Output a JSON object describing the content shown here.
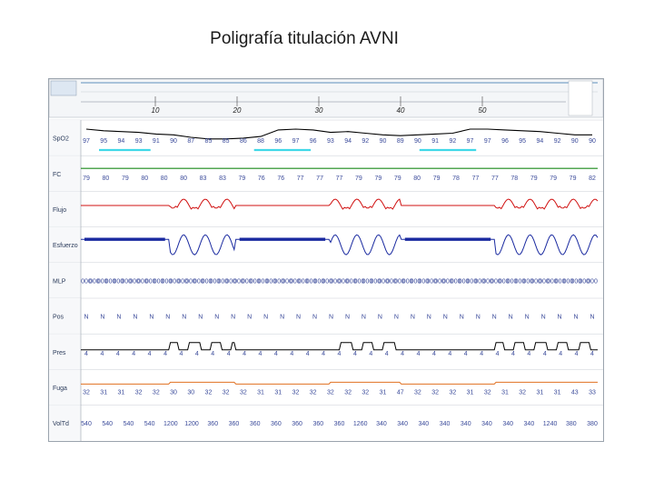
{
  "title": "Poligrafía titulación AVNI",
  "chart_data": {
    "type": "line",
    "time_ticks": [
      "10",
      "20",
      "30",
      "40",
      "50"
    ],
    "channels": [
      {
        "name": "SpO2",
        "color": "#000000",
        "values": [
          "97",
          "95",
          "94",
          "93",
          "91",
          "90",
          "87",
          "85",
          "85",
          "86",
          "88",
          "96",
          "97",
          "96",
          "93",
          "94",
          "92",
          "90",
          "89",
          "90",
          "91",
          "92",
          "97",
          "97",
          "96",
          "95",
          "94",
          "92",
          "90",
          "90"
        ]
      },
      {
        "name": "FC",
        "color": "#1a8a1a",
        "values": [
          "79",
          "80",
          "79",
          "80",
          "80",
          "80",
          "83",
          "83",
          "79",
          "76",
          "76",
          "77",
          "77",
          "77",
          "79",
          "79",
          "79",
          "80",
          "79",
          "78",
          "77",
          "77",
          "78",
          "79",
          "79",
          "79",
          "82"
        ]
      },
      {
        "name": "Flujo",
        "color": "#d01010",
        "values": []
      },
      {
        "name": "Esfuerzo",
        "color": "#1a2aa0",
        "values": []
      },
      {
        "name": "MLP",
        "color": "#2a2ab0",
        "values": [
          "000",
          "000",
          "000",
          "000",
          "000",
          "000",
          "000",
          "000",
          "000",
          "000",
          "000",
          "000",
          "000",
          "000",
          "000",
          "000",
          "000",
          "000",
          "000",
          "000",
          "000",
          "000",
          "000",
          "000",
          "000",
          "000",
          "000",
          "000",
          "000",
          "000",
          "000",
          "000",
          "000",
          "000",
          "000",
          "000",
          "000",
          "000",
          "000",
          "000",
          "000",
          "000",
          "000",
          "000",
          "000",
          "000",
          "000",
          "000",
          "000",
          "000",
          "000",
          "000",
          "000",
          "000",
          "000",
          "000",
          "000",
          "000",
          "000",
          "000",
          "000",
          "000",
          "000",
          "000"
        ]
      },
      {
        "name": "Pos",
        "color": "#3a3ab0",
        "values": [
          "N",
          "N",
          "N",
          "N",
          "N",
          "N",
          "N",
          "N",
          "N",
          "N",
          "N",
          "N",
          "N",
          "N",
          "N",
          "N",
          "N",
          "N",
          "N",
          "N",
          "N",
          "N",
          "N",
          "N",
          "N",
          "N",
          "N",
          "N",
          "N",
          "N",
          "N",
          "N"
        ]
      },
      {
        "name": "Pres",
        "color": "#000000",
        "values": [
          "4",
          "4",
          "4",
          "4",
          "4",
          "4",
          "4",
          "4",
          "4",
          "4",
          "4",
          "4",
          "4",
          "4",
          "4",
          "4",
          "4",
          "4",
          "4",
          "4",
          "4",
          "4",
          "4",
          "4",
          "4",
          "4",
          "4",
          "4",
          "4",
          "4",
          "4",
          "4",
          "4"
        ]
      },
      {
        "name": "Fuga",
        "color": "#e07020",
        "values": [
          "32",
          "31",
          "31",
          "32",
          "32",
          "30",
          "30",
          "32",
          "32",
          "32",
          "31",
          "31",
          "32",
          "32",
          "32",
          "32",
          "32",
          "31",
          "47",
          "32",
          "32",
          "32",
          "31",
          "32",
          "31",
          "32",
          "31",
          "31",
          "43",
          "33"
        ]
      },
      {
        "name": "VolTd",
        "color": "#1a5a8a",
        "values": [
          "540",
          "540",
          "540",
          "540",
          "1200",
          "1200",
          "360",
          "360",
          "360",
          "360",
          "360",
          "360",
          "360",
          "1260",
          "340",
          "340",
          "340",
          "340",
          "340",
          "340",
          "340",
          "340",
          "1240",
          "380",
          "380"
        ]
      }
    ]
  }
}
